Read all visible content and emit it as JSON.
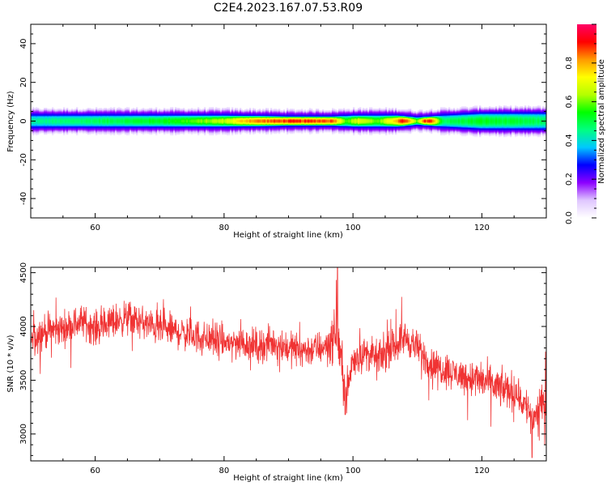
{
  "figure": {
    "title": "C2E4.2023.167.07.53.R09"
  },
  "chart_data": [
    {
      "type": "heatmap",
      "xlabel": "Height of straight line (km)",
      "ylabel": "Frequency (Hz)",
      "xlim": [
        50,
        130
      ],
      "ylim": [
        -50,
        50
      ],
      "xticks": [
        60,
        80,
        100,
        120
      ],
      "yticks": [
        -40,
        -20,
        0,
        20,
        40
      ],
      "band": {
        "center_hz": 0,
        "half_width_hz": [
          {
            "x": 50,
            "v": 3
          },
          {
            "x": 60,
            "v": 3
          },
          {
            "x": 70,
            "v": 3
          },
          {
            "x": 80,
            "v": 3
          },
          {
            "x": 90,
            "v": 2.5
          },
          {
            "x": 97,
            "v": 2.5
          },
          {
            "x": 100,
            "v": 3
          },
          {
            "x": 107,
            "v": 3
          },
          {
            "x": 110,
            "v": 2
          },
          {
            "x": 114,
            "v": 3
          },
          {
            "x": 120,
            "v": 4
          },
          {
            "x": 130,
            "v": 4
          }
        ],
        "peak_amplitude": [
          {
            "x": 50,
            "v": 0.45
          },
          {
            "x": 60,
            "v": 0.5
          },
          {
            "x": 70,
            "v": 0.55
          },
          {
            "x": 75,
            "v": 0.6
          },
          {
            "x": 80,
            "v": 0.68
          },
          {
            "x": 84,
            "v": 0.85
          },
          {
            "x": 90,
            "v": 0.92
          },
          {
            "x": 97,
            "v": 0.9
          },
          {
            "x": 99,
            "v": 0.6
          },
          {
            "x": 101,
            "v": 0.72
          },
          {
            "x": 104,
            "v": 0.6
          },
          {
            "x": 108,
            "v": 0.95
          },
          {
            "x": 110,
            "v": 0.6
          },
          {
            "x": 111,
            "v": 0.9
          },
          {
            "x": 112,
            "v": 0.95
          },
          {
            "x": 114,
            "v": 0.5
          },
          {
            "x": 120,
            "v": 0.55
          },
          {
            "x": 130,
            "v": 0.5
          }
        ]
      },
      "colorbar": {
        "label": "Normalized spectral amplitude",
        "range": [
          0,
          1
        ],
        "ticks": [
          "0.0",
          "0.2",
          "0.4",
          "0.6",
          "0.8"
        ],
        "colormap": [
          "#ffffff",
          "#dfc6ff",
          "#8c00ff",
          "#0000ff",
          "#00c8ff",
          "#00ff80",
          "#00ff00",
          "#b4ff00",
          "#ffff00",
          "#ff9900",
          "#ff0000",
          "#ff0066"
        ]
      }
    },
    {
      "type": "line",
      "xlabel": "Height of straight line (km)",
      "ylabel": "SNR (10 * v/v)",
      "xlim": [
        50,
        130
      ],
      "ylim": [
        2750,
        4550
      ],
      "xticks": [
        60,
        80,
        100,
        120
      ],
      "yticks": [
        3000,
        3500,
        4000,
        4500
      ],
      "series": [
        {
          "color": "#f03333",
          "sampling": "noisy trace (~3 samples per km-pixel); mean trend below",
          "trend": [
            {
              "x": 50,
              "y": 3850
            },
            {
              "x": 52,
              "y": 3950
            },
            {
              "x": 55,
              "y": 3980
            },
            {
              "x": 58,
              "y": 4050
            },
            {
              "x": 60,
              "y": 3980
            },
            {
              "x": 63,
              "y": 4050
            },
            {
              "x": 65,
              "y": 4080
            },
            {
              "x": 68,
              "y": 4020
            },
            {
              "x": 70,
              "y": 3980
            },
            {
              "x": 73,
              "y": 3950
            },
            {
              "x": 75,
              "y": 3920
            },
            {
              "x": 78,
              "y": 3880
            },
            {
              "x": 80,
              "y": 3850
            },
            {
              "x": 83,
              "y": 3850
            },
            {
              "x": 85,
              "y": 3820
            },
            {
              "x": 88,
              "y": 3850
            },
            {
              "x": 90,
              "y": 3800
            },
            {
              "x": 93,
              "y": 3780
            },
            {
              "x": 95,
              "y": 3800
            },
            {
              "x": 96.5,
              "y": 3850
            },
            {
              "x": 97.5,
              "y": 3950
            },
            {
              "x": 98.5,
              "y": 3550
            },
            {
              "x": 99,
              "y": 3350
            },
            {
              "x": 100,
              "y": 3700
            },
            {
              "x": 102,
              "y": 3750
            },
            {
              "x": 104,
              "y": 3700
            },
            {
              "x": 106,
              "y": 3800
            },
            {
              "x": 108,
              "y": 3900
            },
            {
              "x": 110,
              "y": 3800
            },
            {
              "x": 112,
              "y": 3650
            },
            {
              "x": 115,
              "y": 3580
            },
            {
              "x": 118,
              "y": 3520
            },
            {
              "x": 120,
              "y": 3500
            },
            {
              "x": 123,
              "y": 3420
            },
            {
              "x": 125,
              "y": 3400
            },
            {
              "x": 127,
              "y": 3250
            },
            {
              "x": 128,
              "y": 3150
            },
            {
              "x": 129,
              "y": 3250
            },
            {
              "x": 130,
              "y": 3300
            }
          ],
          "spikes": [
            {
              "x": 97.6,
              "y": 4560
            },
            {
              "x": 98.8,
              "y": 3180
            },
            {
              "x": 127.8,
              "y": 2780
            }
          ]
        }
      ]
    }
  ]
}
